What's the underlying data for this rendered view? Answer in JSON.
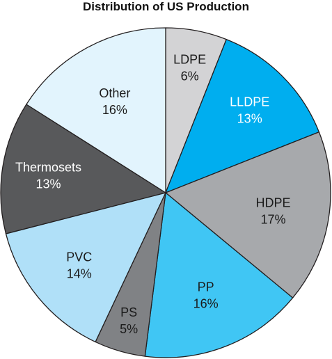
{
  "chart_data": {
    "type": "pie",
    "title": "Distribution of US Production",
    "slices": [
      {
        "label": "LDPE",
        "value": 6,
        "value_text": "6%",
        "color": "#d3d3d5",
        "text_color": "#1a1a1a"
      },
      {
        "label": "LLDPE",
        "value": 13,
        "value_text": "13%",
        "color": "#00aeef",
        "text_color": "#ffffff"
      },
      {
        "label": "HDPE",
        "value": 17,
        "value_text": "17%",
        "color": "#a7a9ac",
        "text_color": "#1a1a1a"
      },
      {
        "label": "PP",
        "value": 16,
        "value_text": "16%",
        "color": "#40c6f4",
        "text_color": "#1a1a1a"
      },
      {
        "label": "PS",
        "value": 5,
        "value_text": "5%",
        "color": "#808285",
        "text_color": "#1a1a1a"
      },
      {
        "label": "PVC",
        "value": 14,
        "value_text": "14%",
        "color": "#b0e0f8",
        "text_color": "#1a1a1a"
      },
      {
        "label": "Thermosets",
        "value": 13,
        "value_text": "13%",
        "color": "#58595b",
        "text_color": "#ffffff"
      },
      {
        "label": "Other",
        "value": 16,
        "value_text": "16%",
        "color": "#e2f4fd",
        "text_color": "#1a1a1a"
      }
    ],
    "start_position": "12 o'clock",
    "direction": "clockwise",
    "legend": "none",
    "label_placement": "inside"
  }
}
